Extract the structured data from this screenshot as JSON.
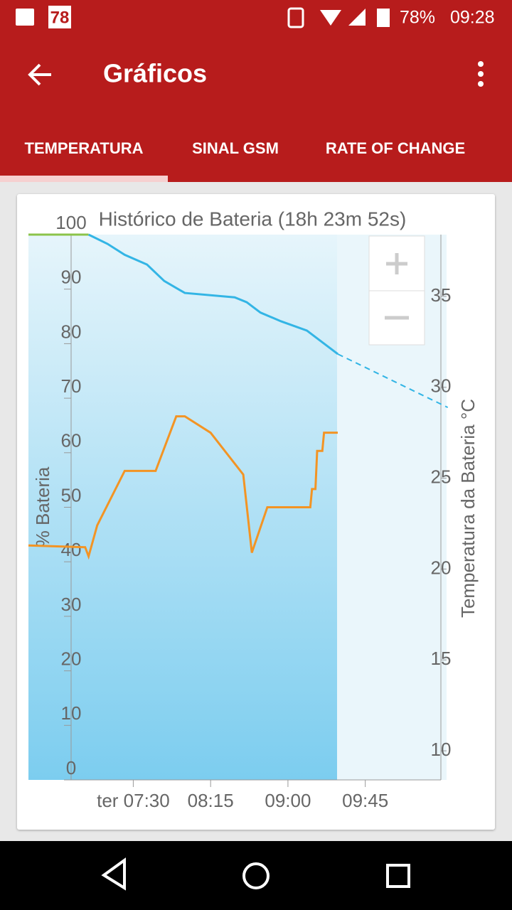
{
  "status_bar": {
    "badge": "78",
    "battery": "78%",
    "time": "09:28"
  },
  "app_bar": {
    "title": "Gráficos"
  },
  "tabs": [
    "TEMPERATURA",
    "SINAL GSM",
    "RATE OF CHANGE"
  ],
  "chart_data": {
    "type": "line",
    "title": "Histórico de Bateria (18h 23m 52s)",
    "y_label": "% Bateria",
    "y2_label": "Temperatura da Bateria °C",
    "xlim": [
      389,
      629
    ],
    "xticks": [
      {
        "value": 450,
        "label": "ter 07:30"
      },
      {
        "value": 495,
        "label": "08:15"
      },
      {
        "value": 540,
        "label": "09:00"
      },
      {
        "value": 585,
        "label": "09:45"
      }
    ],
    "ylim": [
      0,
      100
    ],
    "yticks": [
      0,
      10,
      20,
      30,
      40,
      50,
      60,
      70,
      80,
      90,
      100
    ],
    "y2lim": [
      8.4,
      38.4
    ],
    "y2ticks": [
      10,
      15,
      20,
      25,
      30,
      35
    ],
    "series": [
      {
        "color": "#8bc34a",
        "axis": "y",
        "x": [
          389,
          424
        ],
        "values": [
          100,
          100
        ]
      },
      {
        "color": "#33b5e5",
        "axis": "y",
        "x": [
          424,
          435,
          445,
          458,
          468,
          480,
          509,
          516,
          524,
          536,
          551,
          569
        ],
        "values": [
          100,
          98.3,
          96.3,
          94.5,
          91.5,
          89.3,
          88.5,
          87.6,
          85.7,
          84.1,
          82.4,
          78.1
        ]
      },
      {
        "color": "#33b5e5",
        "axis": "y",
        "dashed": true,
        "x": [
          569,
          633
        ],
        "values": [
          78.1,
          68.3
        ]
      },
      {
        "color": "#f39424",
        "axis": "y2",
        "x": [
          389,
          422,
          424,
          429,
          445,
          463,
          475,
          480,
          495,
          514,
          519,
          528,
          553,
          554,
          556,
          557,
          560,
          561,
          569
        ],
        "values": [
          21.3,
          21.2,
          20.7,
          22.4,
          25.4,
          25.4,
          28.4,
          28.4,
          27.5,
          25.2,
          20.9,
          23.4,
          23.4,
          24.4,
          24.4,
          26.5,
          26.5,
          27.5,
          27.5
        ]
      }
    ]
  }
}
